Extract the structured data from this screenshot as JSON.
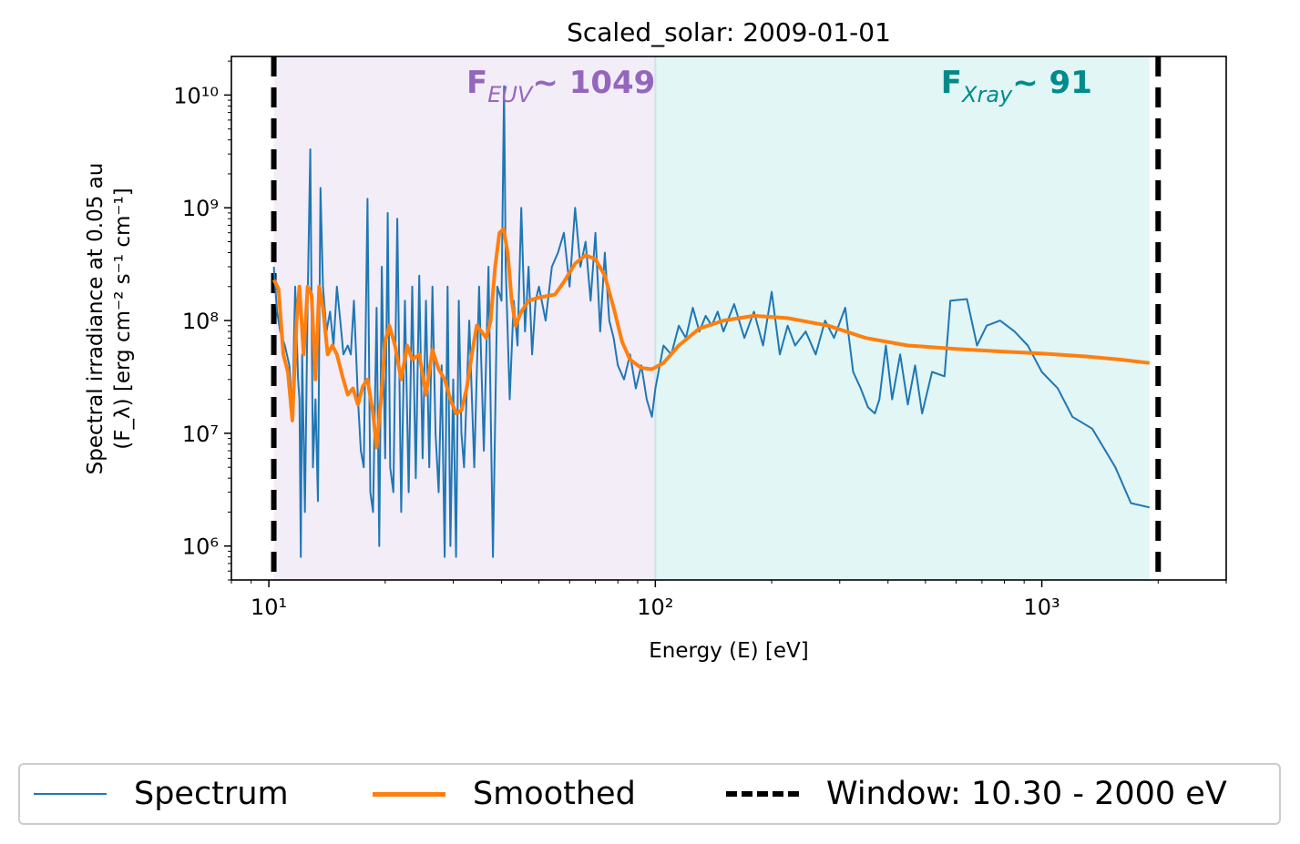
{
  "chart_data": {
    "type": "line",
    "title": "Scaled_solar: 2009-01-01",
    "xlabel": "Energy (E) [eV]",
    "ylabel_line1": "Spectral irradiance at 0.05 au",
    "ylabel_line2": "(F_λ) [erg cm⁻² s⁻¹ cm⁻¹]",
    "xscale": "log",
    "yscale": "log",
    "xlim": [
      8,
      3000
    ],
    "ylim": [
      500000,
      22000000000
    ],
    "xticks": [
      {
        "value": 10,
        "label": "10¹"
      },
      {
        "value": 100,
        "label": "10²"
      },
      {
        "value": 1000,
        "label": "10³"
      }
    ],
    "yticks": [
      {
        "value": 1000000,
        "label": "10⁶"
      },
      {
        "value": 10000000,
        "label": "10⁷"
      },
      {
        "value": 100000000,
        "label": "10⁸"
      },
      {
        "value": 1000000000,
        "label": "10⁹"
      },
      {
        "value": 10000000000,
        "label": "10¹⁰"
      }
    ],
    "bands": [
      {
        "name": "EUV",
        "x0": 10.3,
        "x1": 100,
        "color": "#f3edf8"
      },
      {
        "name": "Xray",
        "x0": 100,
        "x1": 1900,
        "color": "#e1f6f5"
      }
    ],
    "annotations": [
      {
        "main": "F",
        "sub": "EUV",
        "value": "~ 1049",
        "color": "#9467bd",
        "x": 100,
        "align": "end"
      },
      {
        "main": "F",
        "sub": "Xray",
        "value": "~ 91",
        "color": "#008b8b",
        "x": 1350,
        "align": "end"
      }
    ],
    "window": {
      "xmin": 10.3,
      "xmax": 2000,
      "color": "#000000"
    },
    "series": [
      {
        "name": "Spectrum",
        "color": "#1f77b4",
        "points": [
          [
            10.3,
            300000000.0
          ],
          [
            10.5,
            120000000.0
          ],
          [
            10.7,
            80000000.0
          ],
          [
            11.0,
            60000000.0
          ],
          [
            11.3,
            40000000.0
          ],
          [
            11.5,
            15000000.0
          ],
          [
            11.7,
            200000000.0
          ],
          [
            11.9,
            30000000.0
          ],
          [
            12.0,
            20000000.0
          ],
          [
            12.1,
            800000.0
          ],
          [
            12.2,
            50000000.0
          ],
          [
            12.4,
            2000000.0
          ],
          [
            12.6,
            150000000.0
          ],
          [
            12.8,
            3300000000.0
          ],
          [
            13.0,
            5000000.0
          ],
          [
            13.2,
            20000000.0
          ],
          [
            13.4,
            2500000.0
          ],
          [
            13.6,
            1500000000.0
          ],
          [
            13.8,
            200000000.0
          ],
          [
            14.1,
            80000000.0
          ],
          [
            14.4,
            120000000.0
          ],
          [
            14.7,
            60000000.0
          ],
          [
            15.0,
            200000000.0
          ],
          [
            15.3,
            100000000.0
          ],
          [
            15.6,
            50000000.0
          ],
          [
            16.0,
            60000000.0
          ],
          [
            16.3,
            50000000.0
          ],
          [
            16.6,
            150000000.0
          ],
          [
            17.0,
            20000000.0
          ],
          [
            17.3,
            7000000.0
          ],
          [
            17.6,
            5000000.0
          ],
          [
            18.0,
            1200000000.0
          ],
          [
            18.3,
            3000000.0
          ],
          [
            18.6,
            2000000.0
          ],
          [
            19.0,
            130000000.0
          ],
          [
            19.3,
            1000000.0
          ],
          [
            19.6,
            300000000.0
          ],
          [
            20.0,
            6000000.0
          ],
          [
            20.3,
            900000000.0
          ],
          [
            20.6,
            5000000.0
          ],
          [
            21.0,
            3000000.0
          ],
          [
            21.5,
            800000000.0
          ],
          [
            22.0,
            2000000.0
          ],
          [
            22.5,
            150000000.0
          ],
          [
            23.0,
            3000000.0
          ],
          [
            23.5,
            200000000.0
          ],
          [
            24.0,
            4000000.0
          ],
          [
            24.5,
            250000000.0
          ],
          [
            25.0,
            6000000.0
          ],
          [
            25.5,
            150000000.0
          ],
          [
            26.0,
            5000000.0
          ],
          [
            26.5,
            200000000.0
          ],
          [
            27.0,
            10000000.0
          ],
          [
            27.5,
            3000000.0
          ],
          [
            28.0,
            40000000.0
          ],
          [
            28.5,
            800000.0
          ],
          [
            29.0,
            200000000.0
          ],
          [
            29.5,
            1000000.0
          ],
          [
            30.0,
            30000000.0
          ],
          [
            30.5,
            800000.0
          ],
          [
            31.0,
            150000000.0
          ],
          [
            31.5,
            10000000.0
          ],
          [
            32.0,
            5000000.0
          ],
          [
            33.0,
            100000000.0
          ],
          [
            34.0,
            5000000.0
          ],
          [
            35.0,
            200000000.0
          ],
          [
            36.0,
            7000000.0
          ],
          [
            37.0,
            300000000.0
          ],
          [
            38.0,
            800000.0
          ],
          [
            39.0,
            200000000.0
          ],
          [
            40.0,
            150000000.0
          ],
          [
            40.6,
            12000000000.0
          ],
          [
            41.0,
            300000000.0
          ],
          [
            42.0,
            20000000.0
          ],
          [
            43.0,
            150000000.0
          ],
          [
            44.0,
            60000000.0
          ],
          [
            45.0,
            1000000000.0
          ],
          [
            46.0,
            80000000.0
          ],
          [
            47.0,
            300000000.0
          ],
          [
            48.0,
            50000000.0
          ],
          [
            49.0,
            150000000.0
          ],
          [
            50.0,
            200000000.0
          ],
          [
            52.0,
            100000000.0
          ],
          [
            54.0,
            300000000.0
          ],
          [
            56.0,
            400000000.0
          ],
          [
            58.0,
            600000000.0
          ],
          [
            60.0,
            200000000.0
          ],
          [
            62.0,
            1000000000.0
          ],
          [
            64.0,
            300000000.0
          ],
          [
            66.0,
            500000000.0
          ],
          [
            68.0,
            150000000.0
          ],
          [
            70.0,
            600000000.0
          ],
          [
            72.0,
            80000000.0
          ],
          [
            74.0,
            400000000.0
          ],
          [
            76.0,
            100000000.0
          ],
          [
            78.0,
            70000000.0
          ],
          [
            80.0,
            40000000.0
          ],
          [
            83.0,
            30000000.0
          ],
          [
            86.0,
            50000000.0
          ],
          [
            89.0,
            25000000.0
          ],
          [
            92.0,
            40000000.0
          ],
          [
            95.0,
            20000000.0
          ],
          [
            98.0,
            14000000.0
          ],
          [
            100.0,
            25000000.0
          ],
          [
            105.0,
            60000000.0
          ],
          [
            110.0,
            50000000.0
          ],
          [
            115.0,
            90000000.0
          ],
          [
            120.0,
            70000000.0
          ],
          [
            125.0,
            130000000.0
          ],
          [
            130.0,
            80000000.0
          ],
          [
            135.0,
            110000000.0
          ],
          [
            140.0,
            90000000.0
          ],
          [
            145.0,
            120000000.0
          ],
          [
            150.0,
            80000000.0
          ],
          [
            160.0,
            140000000.0
          ],
          [
            170.0,
            70000000.0
          ],
          [
            180.0,
            120000000.0
          ],
          [
            190.0,
            60000000.0
          ],
          [
            200.0,
            180000000.0
          ],
          [
            210.0,
            50000000.0
          ],
          [
            220.0,
            90000000.0
          ],
          [
            230.0,
            60000000.0
          ],
          [
            245.0,
            80000000.0
          ],
          [
            260.0,
            50000000.0
          ],
          [
            275.0,
            100000000.0
          ],
          [
            290.0,
            70000000.0
          ],
          [
            310.0,
            130000000.0
          ],
          [
            325.0,
            35000000.0
          ],
          [
            340.0,
            25000000.0
          ],
          [
            355.0,
            17000000.0
          ],
          [
            370.0,
            15000000.0
          ],
          [
            380.0,
            20000000.0
          ],
          [
            395.0,
            60000000.0
          ],
          [
            410.0,
            20000000.0
          ],
          [
            430.0,
            50000000.0
          ],
          [
            450.0,
            18000000.0
          ],
          [
            470.0,
            40000000.0
          ],
          [
            490.0,
            15000000.0
          ],
          [
            520.0,
            35000000.0
          ],
          [
            560.0,
            32000000.0
          ],
          [
            580.0,
            150000000.0
          ],
          [
            640.0,
            155000000.0
          ],
          [
            680.0,
            60000000.0
          ],
          [
            720.0,
            90000000.0
          ],
          [
            780.0,
            100000000.0
          ],
          [
            850.0,
            80000000.0
          ],
          [
            920.0,
            60000000.0
          ],
          [
            1000.0,
            35000000.0
          ],
          [
            1100.0,
            25000000.0
          ],
          [
            1200.0,
            14000000.0
          ],
          [
            1350.0,
            11000000.0
          ],
          [
            1550.0,
            5000000.0
          ],
          [
            1700.0,
            2400000.0
          ],
          [
            1900.0,
            2200000.0
          ]
        ]
      },
      {
        "name": "Smoothed",
        "color": "#ff7f0e",
        "points": [
          [
            10.3,
            230000000.0
          ],
          [
            10.6,
            190000000.0
          ],
          [
            10.9,
            50000000.0
          ],
          [
            11.2,
            35000000.0
          ],
          [
            11.5,
            13000000.0
          ],
          [
            11.8,
            100000000.0
          ],
          [
            12.0,
            200000000.0
          ],
          [
            12.3,
            50000000.0
          ],
          [
            12.6,
            200000000.0
          ],
          [
            12.9,
            170000000.0
          ],
          [
            13.2,
            30000000.0
          ],
          [
            13.5,
            200000000.0
          ],
          [
            13.8,
            130000000.0
          ],
          [
            14.2,
            50000000.0
          ],
          [
            14.6,
            60000000.0
          ],
          [
            15.0,
            50000000.0
          ],
          [
            15.5,
            32000000.0
          ],
          [
            16.0,
            22000000.0
          ],
          [
            16.5,
            25000000.0
          ],
          [
            17.0,
            18000000.0
          ],
          [
            17.5,
            26000000.0
          ],
          [
            18.0,
            30000000.0
          ],
          [
            18.6,
            15000000.0
          ],
          [
            19.0,
            7500000.0
          ],
          [
            19.5,
            20000000.0
          ],
          [
            20.0,
            65000000.0
          ],
          [
            20.5,
            90000000.0
          ],
          [
            21.2,
            60000000.0
          ],
          [
            22.0,
            30000000.0
          ],
          [
            22.8,
            60000000.0
          ],
          [
            23.5,
            45000000.0
          ],
          [
            24.5,
            50000000.0
          ],
          [
            25.5,
            22000000.0
          ],
          [
            26.5,
            55000000.0
          ],
          [
            27.5,
            37000000.0
          ],
          [
            28.5,
            30000000.0
          ],
          [
            29.5,
            20000000.0
          ],
          [
            30.5,
            15000000.0
          ],
          [
            31.5,
            16000000.0
          ],
          [
            32.5,
            25000000.0
          ],
          [
            33.5,
            50000000.0
          ],
          [
            34.5,
            90000000.0
          ],
          [
            35.5,
            80000000.0
          ],
          [
            36.5,
            70000000.0
          ],
          [
            37.5,
            100000000.0
          ],
          [
            38.5,
            300000000.0
          ],
          [
            39.5,
            600000000.0
          ],
          [
            40.5,
            650000000.0
          ],
          [
            41.5,
            400000000.0
          ],
          [
            42.5,
            150000000.0
          ],
          [
            43.5,
            90000000.0
          ],
          [
            45.0,
            120000000.0
          ],
          [
            47.0,
            150000000.0
          ],
          [
            50.0,
            160000000.0
          ],
          [
            55.0,
            170000000.0
          ],
          [
            58.0,
            220000000.0
          ],
          [
            62.0,
            320000000.0
          ],
          [
            66.0,
            380000000.0
          ],
          [
            70.0,
            350000000.0
          ],
          [
            74.0,
            250000000.0
          ],
          [
            78.0,
            130000000.0
          ],
          [
            82.0,
            65000000.0
          ],
          [
            86.0,
            45000000.0
          ],
          [
            92.0,
            38000000.0
          ],
          [
            98.0,
            37000000.0
          ],
          [
            105.0,
            42000000.0
          ],
          [
            115.0,
            60000000.0
          ],
          [
            130.0,
            85000000.0
          ],
          [
            150.0,
            100000000.0
          ],
          [
            180.0,
            110000000.0
          ],
          [
            220.0,
            105000000.0
          ],
          [
            280.0,
            90000000.0
          ],
          [
            350.0,
            70000000.0
          ],
          [
            450.0,
            60000000.0
          ],
          [
            600.0,
            56000000.0
          ],
          [
            800.0,
            53000000.0
          ],
          [
            1000.0,
            51000000.0
          ],
          [
            1300.0,
            48000000.0
          ],
          [
            1600.0,
            45000000.0
          ],
          [
            1900.0,
            42000000.0
          ]
        ]
      }
    ],
    "legend": {
      "position": "bottom-center, below axes",
      "entries": [
        "Spectrum",
        "Smoothed",
        "Window: 10.30 - 2000 eV"
      ]
    }
  }
}
